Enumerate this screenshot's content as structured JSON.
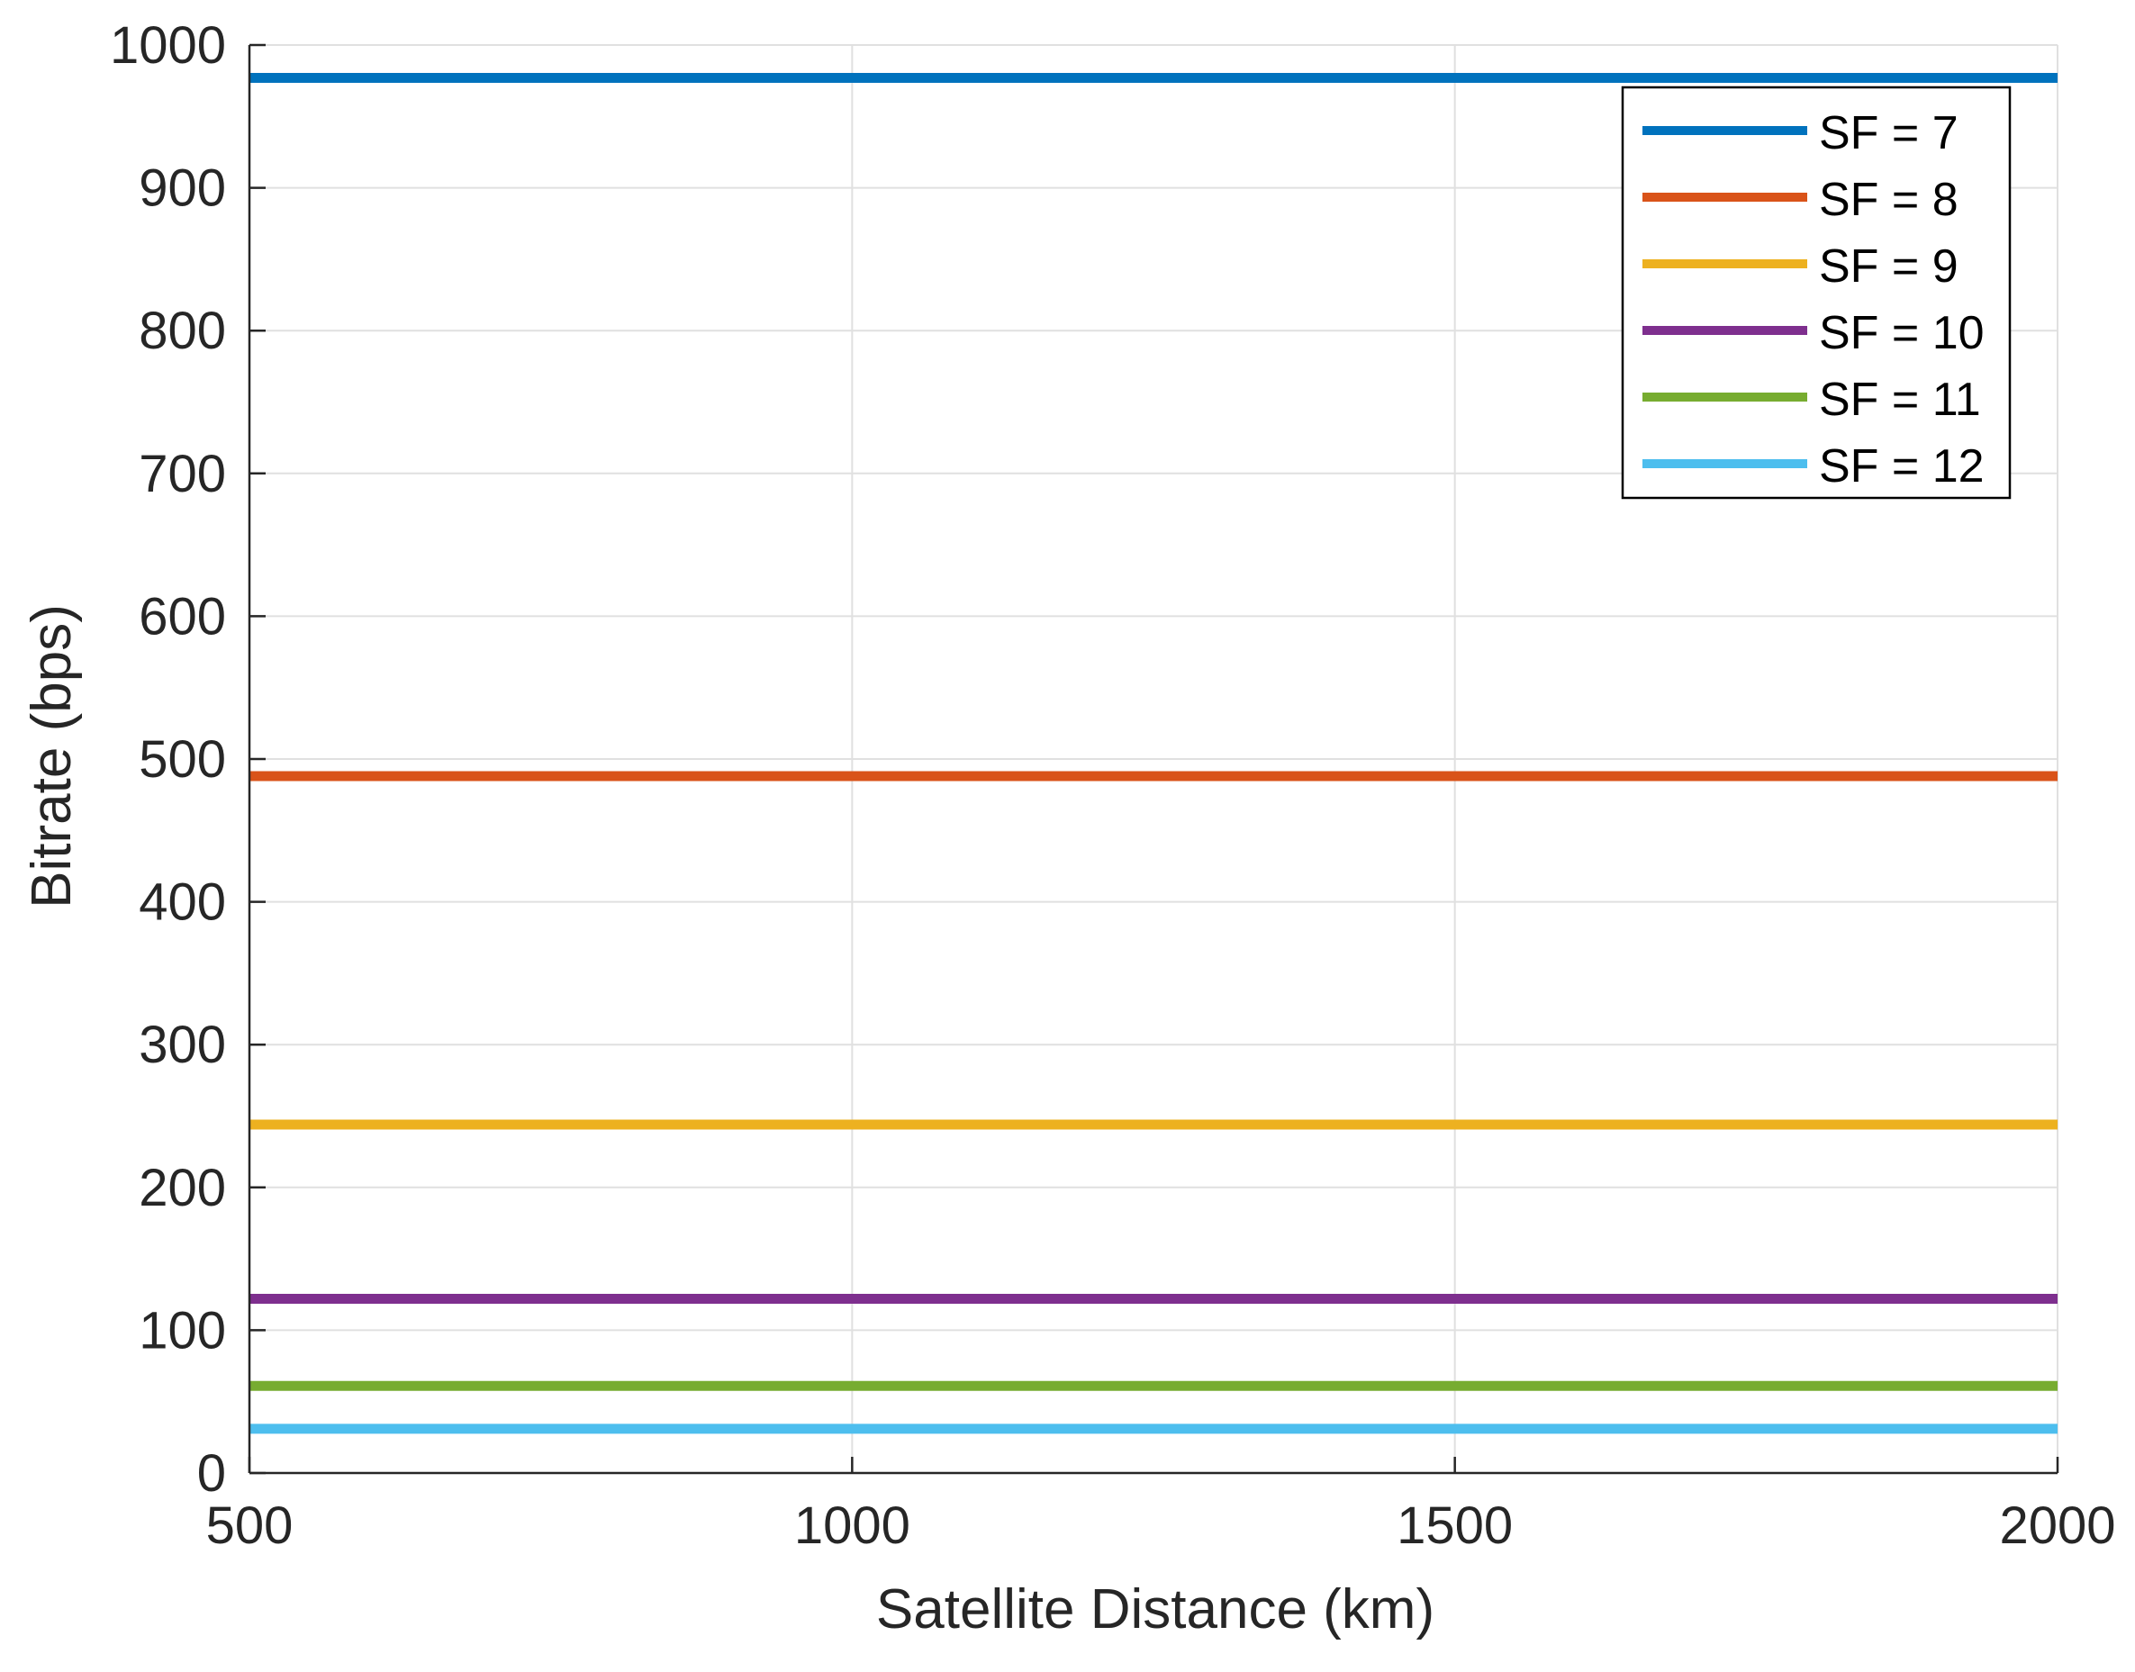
{
  "chart_data": {
    "type": "line",
    "title": "",
    "xlabel": "Satellite Distance (km)",
    "ylabel": "Bitrate (bps)",
    "xlim": [
      500,
      2000
    ],
    "ylim": [
      0,
      1000
    ],
    "x_ticks": [
      500,
      1000,
      1500,
      2000
    ],
    "y_ticks": [
      0,
      100,
      200,
      300,
      400,
      500,
      600,
      700,
      800,
      900,
      1000
    ],
    "grid": true,
    "legend_position": "top-right",
    "x": [
      500,
      2000
    ],
    "series": [
      {
        "name": "SF = 7",
        "values": [
          977,
          977
        ],
        "color": "#0072BD"
      },
      {
        "name": "SF = 8",
        "values": [
          488,
          488
        ],
        "color": "#D95319"
      },
      {
        "name": "SF = 9",
        "values": [
          244,
          244
        ],
        "color": "#EDB120"
      },
      {
        "name": "SF = 10",
        "values": [
          122,
          122
        ],
        "color": "#7E2F8E"
      },
      {
        "name": "SF = 11",
        "values": [
          61,
          61
        ],
        "color": "#77AC30"
      },
      {
        "name": "SF = 12",
        "values": [
          31,
          31
        ],
        "color": "#4DBEEE"
      }
    ]
  }
}
